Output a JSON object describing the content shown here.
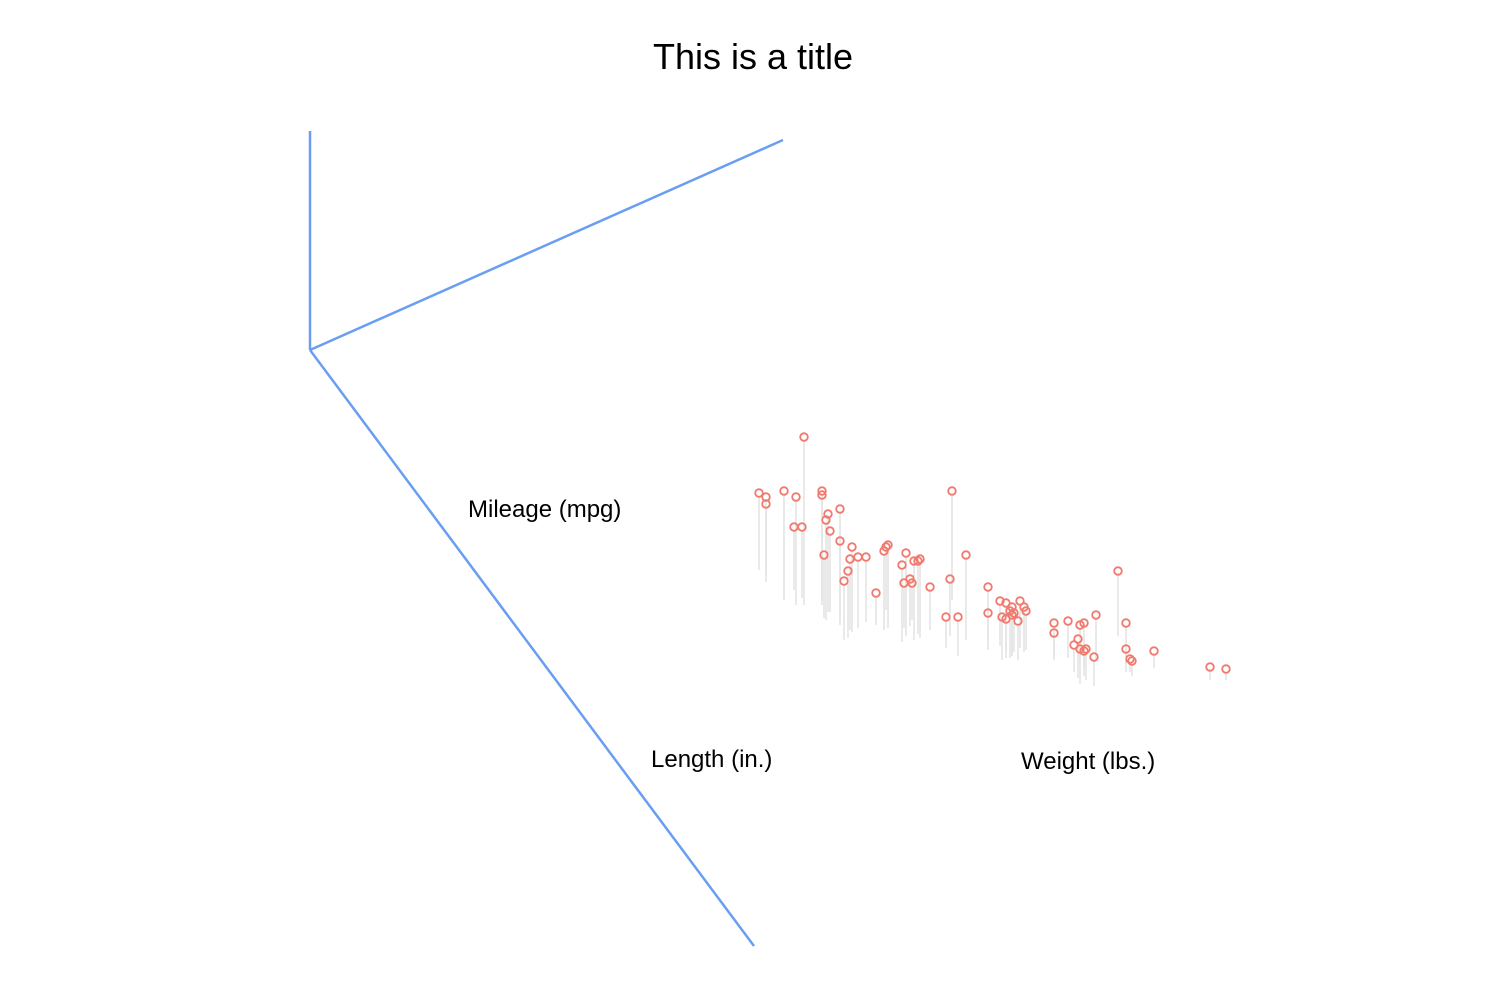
{
  "chart_data": {
    "type": "scatter",
    "subtype": "3d-scatter",
    "title": "This is a title",
    "xlabel": "Weight (lbs.)",
    "ylabel": "Length (in.)",
    "zlabel": "Mileage (mpg)",
    "axis_color": "#6a9ef0",
    "point_color": "#f07a6e",
    "drop_line_color": "#cccccc",
    "grid": false,
    "legend": "none",
    "n_points": 74
  }
}
